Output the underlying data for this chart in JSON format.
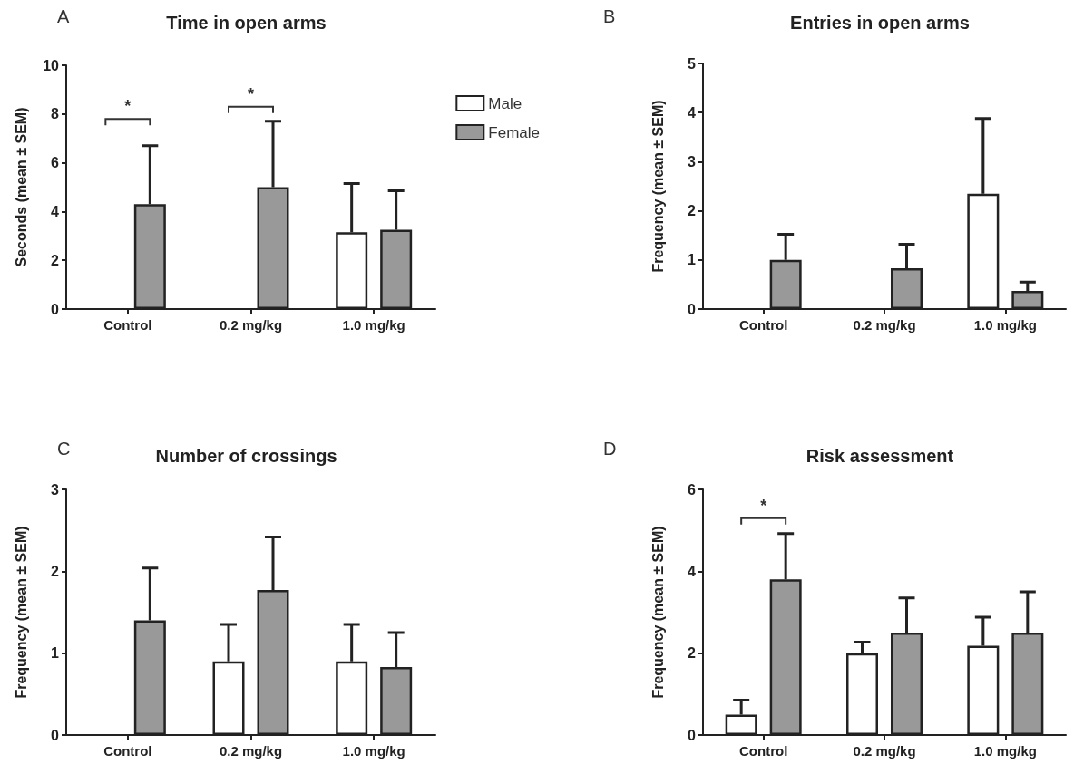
{
  "chart_data": [
    {
      "type": "bar",
      "title": "Time in open arms",
      "ylabel": "Seconds (mean ± SEM)",
      "categories": [
        "Control",
        "0.2 mg/kg",
        "1.0 mg/kg"
      ],
      "ylim": [
        0,
        10
      ],
      "yticks": [
        0,
        2,
        4,
        6,
        8,
        10
      ],
      "legend": "top right",
      "series": [
        {
          "name": "Male",
          "color": "#ffffff",
          "values": [
            null,
            null,
            3.15
          ],
          "errors": [
            null,
            null,
            [
              3.15,
              5.15
            ]
          ]
        },
        {
          "name": "Female",
          "color": "#999999",
          "values": [
            4.3,
            5.0,
            3.25
          ],
          "errors": [
            [
              4.3,
              6.7
            ],
            [
              5.0,
              7.7
            ],
            [
              3.25,
              4.85
            ]
          ]
        }
      ],
      "annotations": [
        "A",
        "*",
        "*"
      ]
    },
    {
      "type": "bar",
      "title": "Entries in open arms",
      "ylabel": "Frequency (mean ± SEM)",
      "categories": [
        "Control",
        "0.2 mg/kg",
        "1.0 mg/kg"
      ],
      "ylim": [
        0,
        5
      ],
      "yticks": [
        0,
        1,
        2,
        3,
        4,
        5
      ],
      "series": [
        {
          "color": "#ffffff",
          "values": [
            null,
            null,
            2.35
          ],
          "errors": [
            null,
            null,
            [
              2.35,
              3.88
            ]
          ]
        },
        {
          "color": "#999999",
          "values": [
            1.0,
            0.83,
            0.37
          ],
          "errors": [
            [
              1.0,
              1.52
            ],
            [
              0.83,
              1.32
            ],
            [
              0.37,
              0.55
            ]
          ]
        }
      ],
      "annotations": [
        "B"
      ]
    },
    {
      "type": "bar",
      "title": "Number of crossings",
      "ylabel": "Frequency (mean ± SEM)",
      "categories": [
        "Control",
        "0.2 mg/kg",
        "1.0 mg/kg"
      ],
      "ylim": [
        0,
        3
      ],
      "yticks": [
        0,
        1,
        2,
        3
      ],
      "series": [
        {
          "color": "#ffffff",
          "values": [
            null,
            0.9,
            0.9
          ],
          "errors": [
            null,
            [
              0.9,
              1.35
            ],
            [
              0.9,
              1.35
            ]
          ]
        },
        {
          "color": "#999999",
          "values": [
            1.4,
            1.77,
            0.83
          ],
          "errors": [
            [
              1.4,
              2.04
            ],
            [
              1.77,
              2.42
            ],
            [
              0.83,
              1.25
            ]
          ]
        }
      ],
      "annotations": [
        "C"
      ]
    },
    {
      "type": "bar",
      "title": "Risk assessment",
      "ylabel": "Frequency (mean ± SEM)",
      "categories": [
        "Control",
        "0.2 mg/kg",
        "1.0 mg/kg"
      ],
      "ylim": [
        0,
        6
      ],
      "yticks": [
        0,
        2,
        4,
        6
      ],
      "series": [
        {
          "color": "#ffffff",
          "values": [
            0.5,
            2.0,
            2.18
          ],
          "errors": [
            [
              0.5,
              0.85
            ],
            [
              2.0,
              2.27
            ],
            [
              2.18,
              2.88
            ]
          ]
        },
        {
          "color": "#999999",
          "values": [
            3.8,
            2.5,
            2.5
          ],
          "errors": [
            [
              3.8,
              4.92
            ],
            [
              2.5,
              3.35
            ],
            [
              2.5,
              3.5
            ]
          ]
        }
      ],
      "annotations": [
        "D",
        "*"
      ]
    }
  ]
}
